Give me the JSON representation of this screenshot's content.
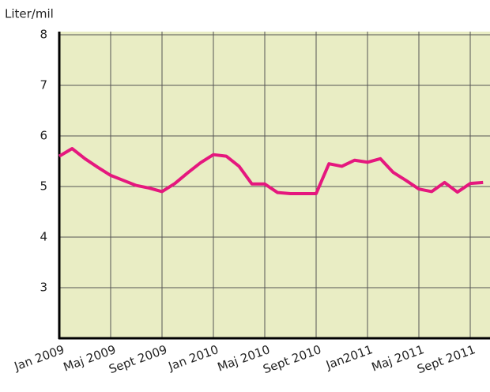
{
  "chart_data": {
    "type": "line",
    "y_label": "Liter/mil",
    "categories": [
      "Jan 2009",
      null,
      null,
      null,
      "Maj 2009",
      null,
      null,
      null,
      "Sept 2009",
      null,
      null,
      null,
      "Jan 2010",
      null,
      null,
      null,
      "Maj 2010",
      null,
      null,
      null,
      "Sept 2010",
      null,
      null,
      null,
      "Jan2011",
      null,
      null,
      null,
      "Maj 2011",
      null,
      null,
      null,
      "Sept 2011",
      null
    ],
    "series": [
      {
        "name": "Liter/mil",
        "color": "#e5177e",
        "values": [
          5.6,
          5.75,
          5.55,
          5.38,
          5.22,
          5.12,
          5.02,
          4.97,
          4.9,
          5.06,
          5.27,
          5.47,
          5.63,
          5.6,
          5.4,
          5.05,
          5.05,
          4.88,
          4.86,
          4.86,
          4.86,
          5.45,
          5.4,
          5.52,
          5.48,
          5.55,
          5.28,
          5.12,
          4.95,
          4.9,
          5.08,
          4.89,
          5.06,
          5.08
        ]
      }
    ],
    "ylim": [
      2,
      8
    ],
    "yticks": [
      3,
      4,
      5,
      6,
      7,
      8
    ],
    "grid": true,
    "plot_background": "#e9edc4"
  }
}
